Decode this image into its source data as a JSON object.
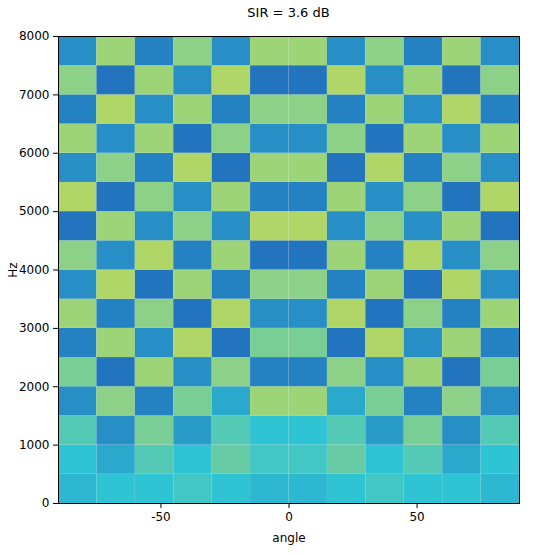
{
  "chart_data": {
    "type": "heatmap",
    "title": "SIR = 3.6 dB",
    "x_label": "angle",
    "y_label": "Hz",
    "xlim": [
      -90,
      90
    ],
    "ylim": [
      0,
      8000
    ],
    "xticks": [
      -50,
      0,
      50
    ],
    "yticks": [
      0,
      1000,
      2000,
      3000,
      4000,
      5000,
      6000,
      7000,
      8000
    ],
    "x_edges": [
      -90,
      -75,
      -60,
      -45,
      -30,
      -15,
      0,
      15,
      30,
      45,
      60,
      75,
      90
    ],
    "y_edges": [
      0,
      500,
      1000,
      1500,
      2000,
      2500,
      3000,
      3500,
      4000,
      4500,
      5000,
      5500,
      6000,
      6500,
      7000,
      7500,
      8000
    ],
    "zlim": [
      0,
      1
    ],
    "cells": [
      [
        0.45,
        0.5,
        0.5,
        0.55,
        0.5,
        0.45,
        0.45,
        0.5,
        0.55,
        0.5,
        0.5,
        0.45
      ],
      [
        0.5,
        0.4,
        0.6,
        0.5,
        0.65,
        0.55,
        0.55,
        0.65,
        0.5,
        0.6,
        0.4,
        0.5
      ],
      [
        0.6,
        0.3,
        0.7,
        0.35,
        0.6,
        0.5,
        0.5,
        0.6,
        0.35,
        0.7,
        0.3,
        0.6
      ],
      [
        0.3,
        0.75,
        0.25,
        0.7,
        0.4,
        0.8,
        0.8,
        0.4,
        0.7,
        0.25,
        0.75,
        0.3
      ],
      [
        0.7,
        0.2,
        0.8,
        0.3,
        0.75,
        0.25,
        0.25,
        0.75,
        0.3,
        0.8,
        0.2,
        0.7
      ],
      [
        0.25,
        0.8,
        0.3,
        0.85,
        0.2,
        0.7,
        0.7,
        0.2,
        0.85,
        0.3,
        0.8,
        0.25
      ],
      [
        0.8,
        0.25,
        0.75,
        0.2,
        0.85,
        0.3,
        0.3,
        0.85,
        0.2,
        0.75,
        0.25,
        0.8
      ],
      [
        0.3,
        0.85,
        0.2,
        0.8,
        0.25,
        0.75,
        0.75,
        0.25,
        0.8,
        0.2,
        0.85,
        0.3
      ],
      [
        0.75,
        0.3,
        0.85,
        0.25,
        0.8,
        0.2,
        0.2,
        0.8,
        0.25,
        0.85,
        0.3,
        0.75
      ],
      [
        0.2,
        0.8,
        0.3,
        0.75,
        0.3,
        0.85,
        0.85,
        0.3,
        0.75,
        0.3,
        0.8,
        0.2
      ],
      [
        0.85,
        0.2,
        0.75,
        0.3,
        0.8,
        0.25,
        0.25,
        0.8,
        0.3,
        0.75,
        0.2,
        0.85
      ],
      [
        0.3,
        0.75,
        0.25,
        0.85,
        0.2,
        0.8,
        0.8,
        0.2,
        0.85,
        0.25,
        0.75,
        0.3
      ],
      [
        0.8,
        0.3,
        0.8,
        0.2,
        0.75,
        0.3,
        0.3,
        0.75,
        0.2,
        0.8,
        0.3,
        0.8
      ],
      [
        0.25,
        0.85,
        0.3,
        0.8,
        0.25,
        0.75,
        0.75,
        0.25,
        0.8,
        0.3,
        0.85,
        0.25
      ],
      [
        0.75,
        0.2,
        0.8,
        0.3,
        0.85,
        0.2,
        0.2,
        0.85,
        0.3,
        0.8,
        0.2,
        0.75
      ],
      [
        0.3,
        0.8,
        0.25,
        0.75,
        0.3,
        0.8,
        0.8,
        0.3,
        0.75,
        0.25,
        0.8,
        0.3
      ]
    ]
  }
}
